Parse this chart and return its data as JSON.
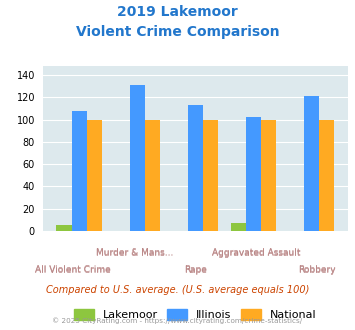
{
  "title_line1": "2019 Lakemoor",
  "title_line2": "Violent Crime Comparison",
  "categories": [
    "All Violent Crime",
    "Murder & Mans...",
    "Rape",
    "Aggravated Assault",
    "Robbery"
  ],
  "lakemoor": [
    5,
    0,
    0,
    7,
    0
  ],
  "illinois": [
    108,
    131,
    113,
    102,
    121
  ],
  "national": [
    100,
    100,
    100,
    100,
    100
  ],
  "colors": {
    "lakemoor": "#8dc63f",
    "illinois": "#4499ff",
    "national": "#ffaa22"
  },
  "ylim": [
    0,
    148
  ],
  "yticks": [
    0,
    20,
    40,
    60,
    80,
    100,
    120,
    140
  ],
  "bg_color": "#dde9ed",
  "title_color": "#2277cc",
  "label_color": "#bb8888",
  "note": "Compared to U.S. average. (U.S. average equals 100)",
  "footer": "© 2025 CityRating.com - https://www.cityrating.com/crime-statistics/",
  "note_color": "#cc4400",
  "footer_color": "#999999"
}
